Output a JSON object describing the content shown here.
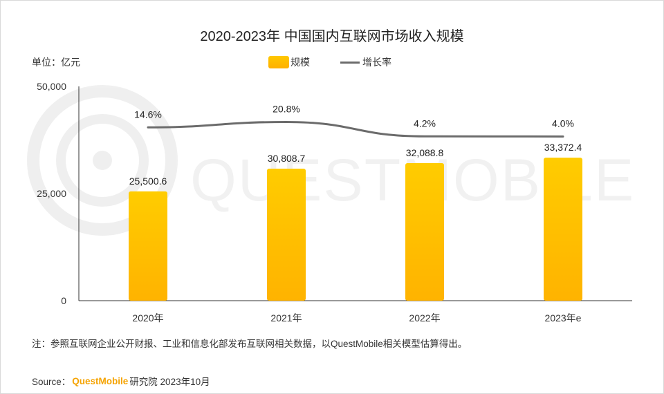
{
  "title": "2020-2023年 中国国内互联网市场收入规模",
  "unit_label": "单位：亿元",
  "legend": {
    "bar_label": "规模",
    "line_label": "增长率"
  },
  "watermark_text": "QUESTMOBILE",
  "note": "注：参照互联网企业公开财报、工业和信息化部发布互联网相关数据，以QuestMobile相关模型估算得出。",
  "source": {
    "prefix": "Source：",
    "brand": "QuestMobile",
    "suffix": "研究院 2023年10月"
  },
  "colors": {
    "bar_top": "#ffcc00",
    "bar_bottom": "#ffb300",
    "line": "#6b6b6b",
    "brand": "#f5a300"
  },
  "chart_data": {
    "type": "bar",
    "title": "2020-2023年 中国国内互联网市场收入规模",
    "categories": [
      "2020年",
      "2021年",
      "2022年",
      "2023年e"
    ],
    "series": [
      {
        "name": "规模",
        "type": "bar",
        "values": [
          25500.6,
          30808.7,
          32088.8,
          33372.4
        ],
        "labels": [
          "25,500.6",
          "30,808.7",
          "32,088.8",
          "33,372.4"
        ]
      },
      {
        "name": "增长率",
        "type": "line",
        "values": [
          14.6,
          20.8,
          4.2,
          4.0
        ],
        "labels": [
          "14.6%",
          "20.8%",
          "4.2%",
          "4.0%"
        ]
      }
    ],
    "ylabel": "亿元",
    "ylim": [
      0,
      50000
    ],
    "y_ticks": [
      0,
      25000,
      50000
    ],
    "y_tick_labels": [
      "0",
      "25,000",
      "50,000"
    ],
    "grid": false,
    "legend_position": "top-center"
  }
}
